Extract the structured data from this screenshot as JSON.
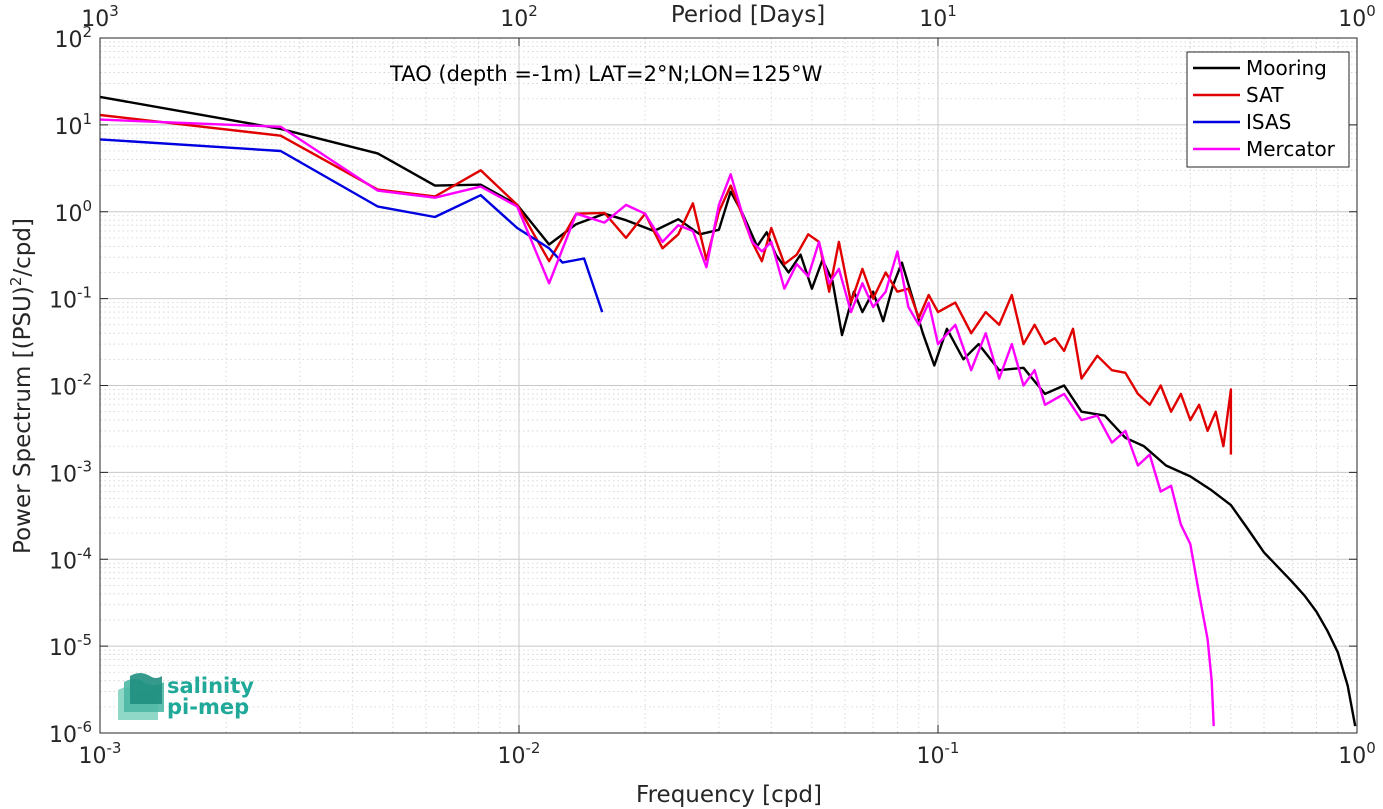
{
  "chart_data": {
    "type": "line",
    "annotation": "TAO (depth =-1m) LAT=2°N;LON=125°W",
    "xlabel": "Frequency [cpd]",
    "ylabel_main": "Power Spectrum [(PSU)",
    "ylabel_sup": "2",
    "ylabel_tail": "/cpd]",
    "top_axis_label": "Period [Days]",
    "x_scale": "log",
    "y_scale": "log",
    "xlim": [
      0.001,
      1
    ],
    "ylim": [
      1e-06,
      100
    ],
    "grid": true,
    "minor_grid": true,
    "legend_position": "top-right",
    "x_ticks": [
      {
        "value": 0.001,
        "base": "10",
        "exp": "-3"
      },
      {
        "value": 0.01,
        "base": "10",
        "exp": "-2"
      },
      {
        "value": 0.1,
        "base": "10",
        "exp": "-1"
      },
      {
        "value": 1,
        "base": "10",
        "exp": "0"
      }
    ],
    "top_ticks": [
      {
        "value": 0.001,
        "base": "10",
        "exp": "3"
      },
      {
        "value": 0.01,
        "base": "10",
        "exp": "2"
      },
      {
        "value": 0.1,
        "base": "10",
        "exp": "1"
      },
      {
        "value": 1,
        "base": "10",
        "exp": "0"
      }
    ],
    "y_ticks": [
      {
        "value": 100,
        "base": "10",
        "exp": "2"
      },
      {
        "value": 10,
        "base": "10",
        "exp": "1"
      },
      {
        "value": 1,
        "base": "10",
        "exp": "0"
      },
      {
        "value": 0.1,
        "base": "10",
        "exp": "-1"
      },
      {
        "value": 0.01,
        "base": "10",
        "exp": "-2"
      },
      {
        "value": 0.001,
        "base": "10",
        "exp": "-3"
      },
      {
        "value": 0.0001,
        "base": "10",
        "exp": "-4"
      },
      {
        "value": 1e-05,
        "base": "10",
        "exp": "-5"
      },
      {
        "value": 1e-06,
        "base": "10",
        "exp": "-6"
      }
    ],
    "series": [
      {
        "name": "Mooring",
        "color": "#000000",
        "points": [
          [
            0.001,
            21
          ],
          [
            0.0027,
            9
          ],
          [
            0.0046,
            4.7
          ],
          [
            0.0063,
            2
          ],
          [
            0.0081,
            2.05
          ],
          [
            0.0099,
            1.2
          ],
          [
            0.0118,
            0.42
          ],
          [
            0.0137,
            0.72
          ],
          [
            0.016,
            0.95
          ],
          [
            0.018,
            0.8
          ],
          [
            0.021,
            0.6
          ],
          [
            0.024,
            0.82
          ],
          [
            0.027,
            0.55
          ],
          [
            0.03,
            0.62
          ],
          [
            0.032,
            1.7
          ],
          [
            0.034,
            1.0
          ],
          [
            0.037,
            0.4
          ],
          [
            0.039,
            0.58
          ],
          [
            0.041,
            0.32
          ],
          [
            0.044,
            0.2
          ],
          [
            0.047,
            0.32
          ],
          [
            0.05,
            0.13
          ],
          [
            0.053,
            0.28
          ],
          [
            0.056,
            0.16
          ],
          [
            0.059,
            0.038
          ],
          [
            0.063,
            0.12
          ],
          [
            0.066,
            0.07
          ],
          [
            0.07,
            0.12
          ],
          [
            0.074,
            0.055
          ],
          [
            0.078,
            0.14
          ],
          [
            0.082,
            0.26
          ],
          [
            0.087,
            0.1
          ],
          [
            0.092,
            0.04
          ],
          [
            0.098,
            0.017
          ],
          [
            0.105,
            0.045
          ],
          [
            0.115,
            0.02
          ],
          [
            0.125,
            0.03
          ],
          [
            0.14,
            0.015
          ],
          [
            0.16,
            0.016
          ],
          [
            0.18,
            0.008
          ],
          [
            0.2,
            0.01
          ],
          [
            0.22,
            0.005
          ],
          [
            0.25,
            0.0045
          ],
          [
            0.28,
            0.0025
          ],
          [
            0.31,
            0.002
          ],
          [
            0.35,
            0.0012
          ],
          [
            0.4,
            0.0009
          ],
          [
            0.45,
            0.00062
          ],
          [
            0.5,
            0.00042
          ],
          [
            0.55,
            0.00022
          ],
          [
            0.6,
            0.00012
          ],
          [
            0.65,
            8e-05
          ],
          [
            0.7,
            5.5e-05
          ],
          [
            0.75,
            3.8e-05
          ],
          [
            0.8,
            2.5e-05
          ],
          [
            0.85,
            1.5e-05
          ],
          [
            0.9,
            8.5e-06
          ],
          [
            0.95,
            3.5e-06
          ],
          [
            0.99,
            1.2e-06
          ]
        ]
      },
      {
        "name": "SAT",
        "color": "#e00000",
        "points": [
          [
            0.001,
            13
          ],
          [
            0.0027,
            7.5
          ],
          [
            0.0046,
            1.8
          ],
          [
            0.0063,
            1.5
          ],
          [
            0.0081,
            3
          ],
          [
            0.0099,
            1.2
          ],
          [
            0.0118,
            0.27
          ],
          [
            0.0137,
            0.95
          ],
          [
            0.016,
            0.97
          ],
          [
            0.018,
            0.5
          ],
          [
            0.02,
            0.95
          ],
          [
            0.022,
            0.38
          ],
          [
            0.024,
            0.55
          ],
          [
            0.026,
            1.25
          ],
          [
            0.028,
            0.28
          ],
          [
            0.03,
            1.0
          ],
          [
            0.032,
            2.0
          ],
          [
            0.034,
            0.95
          ],
          [
            0.036,
            0.45
          ],
          [
            0.038,
            0.27
          ],
          [
            0.04,
            0.65
          ],
          [
            0.043,
            0.25
          ],
          [
            0.046,
            0.32
          ],
          [
            0.049,
            0.55
          ],
          [
            0.052,
            0.45
          ],
          [
            0.055,
            0.12
          ],
          [
            0.058,
            0.45
          ],
          [
            0.062,
            0.09
          ],
          [
            0.066,
            0.22
          ],
          [
            0.07,
            0.1
          ],
          [
            0.075,
            0.2
          ],
          [
            0.08,
            0.12
          ],
          [
            0.085,
            0.13
          ],
          [
            0.09,
            0.06
          ],
          [
            0.095,
            0.11
          ],
          [
            0.1,
            0.07
          ],
          [
            0.11,
            0.09
          ],
          [
            0.12,
            0.04
          ],
          [
            0.13,
            0.07
          ],
          [
            0.14,
            0.05
          ],
          [
            0.15,
            0.11
          ],
          [
            0.16,
            0.03
          ],
          [
            0.17,
            0.05
          ],
          [
            0.18,
            0.03
          ],
          [
            0.19,
            0.035
          ],
          [
            0.2,
            0.025
          ],
          [
            0.21,
            0.045
          ],
          [
            0.22,
            0.012
          ],
          [
            0.24,
            0.022
          ],
          [
            0.26,
            0.015
          ],
          [
            0.28,
            0.014
          ],
          [
            0.3,
            0.008
          ],
          [
            0.32,
            0.006
          ],
          [
            0.34,
            0.01
          ],
          [
            0.36,
            0.005
          ],
          [
            0.38,
            0.008
          ],
          [
            0.4,
            0.004
          ],
          [
            0.42,
            0.006
          ],
          [
            0.44,
            0.003
          ],
          [
            0.46,
            0.005
          ],
          [
            0.48,
            0.002
          ],
          [
            0.5,
            0.009
          ],
          [
            0.5,
            0.0016
          ]
        ]
      },
      {
        "name": "ISAS",
        "color": "#0000e0",
        "points": [
          [
            0.001,
            6.8
          ],
          [
            0.0027,
            5
          ],
          [
            0.0046,
            1.15
          ],
          [
            0.0063,
            0.87
          ],
          [
            0.0081,
            1.55
          ],
          [
            0.0099,
            0.65
          ],
          [
            0.0118,
            0.38
          ],
          [
            0.0127,
            0.26
          ],
          [
            0.0143,
            0.29
          ],
          [
            0.0158,
            0.07
          ]
        ]
      },
      {
        "name": "Mercator",
        "color": "#ff00ff",
        "points": [
          [
            0.001,
            11.5
          ],
          [
            0.0027,
            9.5
          ],
          [
            0.0046,
            1.75
          ],
          [
            0.0063,
            1.45
          ],
          [
            0.0081,
            1.95
          ],
          [
            0.0099,
            1.15
          ],
          [
            0.0118,
            0.15
          ],
          [
            0.0137,
            0.95
          ],
          [
            0.016,
            0.75
          ],
          [
            0.018,
            1.2
          ],
          [
            0.02,
            0.95
          ],
          [
            0.022,
            0.45
          ],
          [
            0.024,
            0.7
          ],
          [
            0.026,
            0.6
          ],
          [
            0.028,
            0.23
          ],
          [
            0.03,
            1.2
          ],
          [
            0.032,
            2.7
          ],
          [
            0.034,
            1.0
          ],
          [
            0.036,
            0.45
          ],
          [
            0.038,
            0.35
          ],
          [
            0.04,
            0.45
          ],
          [
            0.043,
            0.13
          ],
          [
            0.046,
            0.25
          ],
          [
            0.049,
            0.18
          ],
          [
            0.052,
            0.45
          ],
          [
            0.055,
            0.15
          ],
          [
            0.058,
            0.22
          ],
          [
            0.062,
            0.07
          ],
          [
            0.066,
            0.15
          ],
          [
            0.07,
            0.08
          ],
          [
            0.075,
            0.12
          ],
          [
            0.08,
            0.35
          ],
          [
            0.085,
            0.08
          ],
          [
            0.09,
            0.05
          ],
          [
            0.095,
            0.09
          ],
          [
            0.1,
            0.03
          ],
          [
            0.11,
            0.05
          ],
          [
            0.12,
            0.015
          ],
          [
            0.13,
            0.04
          ],
          [
            0.14,
            0.012
          ],
          [
            0.15,
            0.03
          ],
          [
            0.16,
            0.01
          ],
          [
            0.17,
            0.015
          ],
          [
            0.18,
            0.006
          ],
          [
            0.2,
            0.008
          ],
          [
            0.22,
            0.004
          ],
          [
            0.24,
            0.0045
          ],
          [
            0.26,
            0.0022
          ],
          [
            0.28,
            0.003
          ],
          [
            0.3,
            0.0012
          ],
          [
            0.32,
            0.0016
          ],
          [
            0.34,
            0.0006
          ],
          [
            0.36,
            0.0007
          ],
          [
            0.38,
            0.00025
          ],
          [
            0.4,
            0.00015
          ],
          [
            0.42,
            4e-05
          ],
          [
            0.44,
            1.2e-05
          ],
          [
            0.45,
            4e-06
          ],
          [
            0.455,
            1.2e-06
          ]
        ]
      }
    ]
  },
  "logo": {
    "line1": "salinity",
    "line2": "pi-mep"
  }
}
